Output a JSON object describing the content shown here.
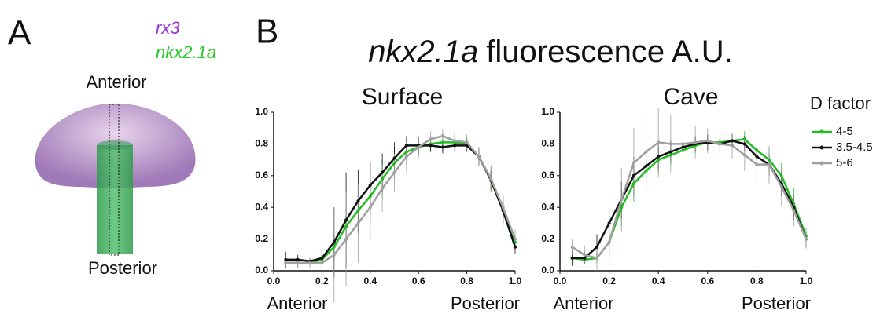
{
  "panel_a": {
    "label": "A",
    "gene_1": "rx3",
    "gene_2": "nkx2.1a",
    "top": "Anterior",
    "bottom": "Posterior"
  },
  "panel_b": {
    "label": "B",
    "title_gene": "nkx2.1a",
    "title_rest": "fluorescence A.U."
  },
  "chart_data": [
    {
      "type": "line",
      "title": "Surface",
      "xlabel_left": "Anterior",
      "xlabel_right": "Posterior",
      "x": [
        0.05,
        0.1,
        0.15,
        0.2,
        0.25,
        0.3,
        0.35,
        0.4,
        0.45,
        0.5,
        0.55,
        0.6,
        0.65,
        0.7,
        0.75,
        0.8,
        0.85,
        0.9,
        0.95,
        1.0
      ],
      "xlim": [
        0,
        1
      ],
      "xticks": [
        {
          "value": 0,
          "label": "0.0"
        },
        0.2,
        0.4,
        0.6,
        0.8,
        {
          "value": 1,
          "label": "1.0"
        }
      ],
      "ylim": [
        0,
        1
      ],
      "yticks": [
        {
          "value": 0,
          "label": "0.0"
        },
        0.2,
        0.4,
        0.6,
        0.8,
        {
          "value": 1,
          "label": "1.0"
        }
      ],
      "series": [
        {
          "color": "#22bb22",
          "values": [
            0.05,
            0.05,
            0.05,
            0.07,
            0.15,
            0.28,
            0.38,
            0.47,
            0.58,
            0.68,
            0.75,
            0.78,
            0.8,
            0.81,
            0.81,
            0.8,
            0.72,
            0.58,
            0.38,
            0.18
          ],
          "errors": [
            0.03,
            0.03,
            0.02,
            0.05,
            0.08,
            0.12,
            0.15,
            0.15,
            0.12,
            0.1,
            0.08,
            0.06,
            0.05,
            0.06,
            0.05,
            0.04,
            0.06,
            0.08,
            0.1,
            0.05
          ]
        },
        {
          "color": "#111111",
          "values": [
            0.07,
            0.07,
            0.06,
            0.08,
            0.18,
            0.32,
            0.44,
            0.54,
            0.62,
            0.71,
            0.79,
            0.79,
            0.79,
            0.78,
            0.79,
            0.79,
            0.72,
            0.57,
            0.38,
            0.15
          ],
          "errors": [
            0.05,
            0.03,
            0.02,
            0.05,
            0.22,
            0.3,
            0.2,
            0.15,
            0.12,
            0.1,
            0.06,
            0.05,
            0.04,
            0.04,
            0.04,
            0.04,
            0.05,
            0.06,
            0.08,
            0.04
          ]
        },
        {
          "color": "#a0a0a0",
          "values": [
            0.05,
            0.05,
            0.05,
            0.05,
            0.1,
            0.2,
            0.3,
            0.4,
            0.52,
            0.62,
            0.72,
            0.78,
            0.83,
            0.85,
            0.82,
            0.81,
            0.72,
            0.58,
            0.4,
            0.2
          ],
          "errors": [
            0.04,
            0.03,
            0.03,
            0.1,
            0.3,
            0.3,
            0.25,
            0.2,
            0.15,
            0.12,
            0.1,
            0.07,
            0.05,
            0.04,
            0.06,
            0.05,
            0.06,
            0.08,
            0.08,
            0.06
          ]
        }
      ]
    },
    {
      "type": "line",
      "title": "Cave",
      "xlabel_left": "Anterior",
      "xlabel_right": "Posterior",
      "legend_title": "D factor",
      "x": [
        0.05,
        0.1,
        0.15,
        0.2,
        0.25,
        0.3,
        0.35,
        0.4,
        0.45,
        0.5,
        0.55,
        0.6,
        0.65,
        0.7,
        0.75,
        0.8,
        0.85,
        0.9,
        0.95,
        1.0
      ],
      "xlim": [
        0,
        1
      ],
      "xticks": [
        {
          "value": 0,
          "label": "0.0"
        },
        0.2,
        0.4,
        0.6,
        0.8,
        {
          "value": 1,
          "label": "1.0"
        }
      ],
      "ylim": [
        0,
        1
      ],
      "yticks": [
        {
          "value": 0,
          "label": "0.0"
        },
        0.2,
        0.4,
        0.6,
        0.8,
        {
          "value": 1,
          "label": "1.0"
        }
      ],
      "series": [
        {
          "name": "4-5",
          "color": "#22bb22",
          "values": [
            0.08,
            0.07,
            0.08,
            0.18,
            0.4,
            0.55,
            0.63,
            0.7,
            0.73,
            0.76,
            0.79,
            0.81,
            0.81,
            0.82,
            0.83,
            0.76,
            0.7,
            0.6,
            0.42,
            0.22
          ],
          "errors": [
            0.04,
            0.03,
            0.04,
            0.08,
            0.12,
            0.12,
            0.1,
            0.08,
            0.07,
            0.06,
            0.05,
            0.05,
            0.04,
            0.04,
            0.05,
            0.06,
            0.07,
            0.08,
            0.1,
            0.05
          ]
        },
        {
          "name": "3.5-4.5",
          "color": "#111111",
          "values": [
            0.08,
            0.08,
            0.15,
            0.3,
            0.45,
            0.6,
            0.66,
            0.72,
            0.75,
            0.78,
            0.8,
            0.81,
            0.8,
            0.82,
            0.8,
            0.72,
            0.67,
            0.55,
            0.4,
            0.2
          ],
          "errors": [
            0.05,
            0.04,
            0.08,
            0.1,
            0.12,
            0.12,
            0.1,
            0.08,
            0.07,
            0.06,
            0.05,
            0.05,
            0.05,
            0.04,
            0.05,
            0.06,
            0.07,
            0.08,
            0.08,
            0.05
          ]
        },
        {
          "name": "5-6",
          "color": "#a0a0a0",
          "values": [
            0.15,
            0.1,
            0.08,
            0.18,
            0.45,
            0.68,
            0.75,
            0.81,
            0.8,
            0.8,
            0.81,
            0.82,
            0.8,
            0.79,
            0.73,
            0.67,
            0.67,
            0.53,
            0.38,
            0.2
          ],
          "errors": [
            0.05,
            0.06,
            0.08,
            0.15,
            0.2,
            0.22,
            0.25,
            0.22,
            0.18,
            0.15,
            0.1,
            0.08,
            0.07,
            0.08,
            0.1,
            0.12,
            0.12,
            0.12,
            0.1,
            0.06
          ]
        }
      ]
    }
  ]
}
